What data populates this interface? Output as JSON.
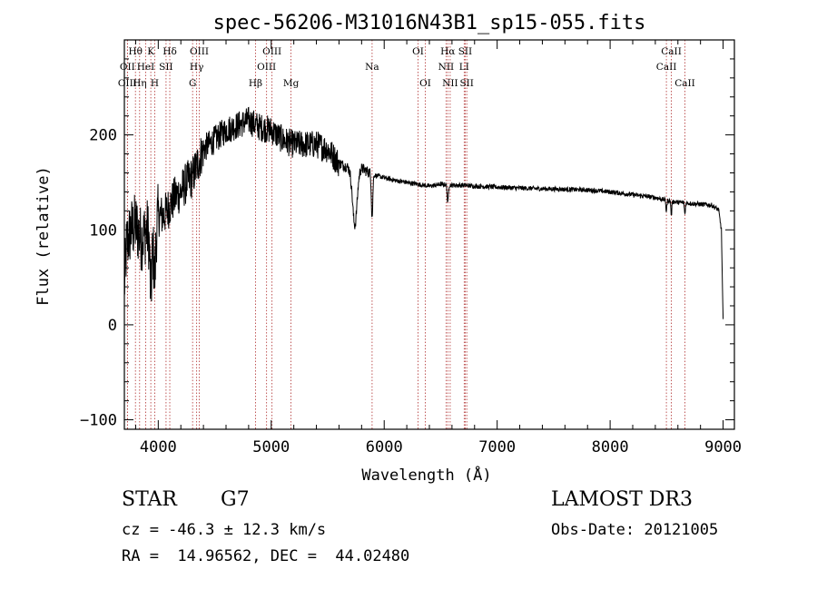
{
  "chart_data": {
    "type": "line",
    "title": "spec-56206-M31016N43B1_sp15-055.fits",
    "xlabel": "Wavelength (Å)",
    "ylabel": "Flux (relative)",
    "xlim": [
      3700,
      9100
    ],
    "ylim": [
      -110,
      300
    ],
    "x_ticks": [
      4000,
      5000,
      6000,
      7000,
      8000,
      9000
    ],
    "y_ticks": [
      -100,
      0,
      100,
      200
    ],
    "grid": false,
    "line_color": "#000000",
    "marker_color": "#b03030",
    "continuum": [
      [
        3700,
        40
      ],
      [
        3720,
        85
      ],
      [
        3760,
        100
      ],
      [
        3800,
        105
      ],
      [
        3850,
        90
      ],
      [
        3900,
        100
      ],
      [
        3950,
        85
      ],
      [
        4000,
        115
      ],
      [
        4050,
        115
      ],
      [
        4100,
        125
      ],
      [
        4150,
        135
      ],
      [
        4200,
        140
      ],
      [
        4250,
        150
      ],
      [
        4300,
        155
      ],
      [
        4350,
        170
      ],
      [
        4400,
        185
      ],
      [
        4500,
        195
      ],
      [
        4600,
        205
      ],
      [
        4700,
        210
      ],
      [
        4800,
        215
      ],
      [
        4900,
        208
      ],
      [
        5000,
        205
      ],
      [
        5100,
        195
      ],
      [
        5200,
        190
      ],
      [
        5300,
        190
      ],
      [
        5400,
        190
      ],
      [
        5500,
        185
      ],
      [
        5600,
        170
      ],
      [
        5700,
        165
      ],
      [
        5800,
        165
      ],
      [
        5900,
        158
      ],
      [
        6000,
        155
      ],
      [
        6100,
        152
      ],
      [
        6200,
        150
      ],
      [
        6300,
        148
      ],
      [
        6400,
        146
      ],
      [
        6500,
        148
      ],
      [
        6600,
        147
      ],
      [
        6700,
        147
      ],
      [
        6800,
        146
      ],
      [
        7000,
        145
      ],
      [
        7200,
        144
      ],
      [
        7500,
        143
      ],
      [
        7800,
        142
      ],
      [
        8000,
        140
      ],
      [
        8200,
        137
      ],
      [
        8400,
        134
      ],
      [
        8500,
        131
      ],
      [
        8600,
        129
      ],
      [
        8700,
        128
      ],
      [
        8800,
        127
      ],
      [
        8900,
        126
      ],
      [
        8960,
        121
      ],
      [
        8985,
        100
      ],
      [
        9000,
        5
      ]
    ],
    "absorption_features": [
      {
        "center": 3934,
        "depth": 55,
        "width": 8
      },
      {
        "center": 3969,
        "depth": 45,
        "width": 8
      },
      {
        "center": 5740,
        "depth": 60,
        "width": 20
      },
      {
        "center": 5893,
        "depth": 45,
        "width": 6
      },
      {
        "center": 6563,
        "depth": 20,
        "width": 5
      },
      {
        "center": 8498,
        "depth": 12,
        "width": 4
      },
      {
        "center": 8542,
        "depth": 15,
        "width": 4
      },
      {
        "center": 8662,
        "depth": 12,
        "width": 4
      }
    ],
    "lines": [
      {
        "label": "Hθ",
        "wave": 3798,
        "row": 0
      },
      {
        "label": "OII",
        "wave": 3727,
        "row": 1
      },
      {
        "label": "OIII",
        "wave": 3727,
        "row": 2
      },
      {
        "label": "K",
        "wave": 3934,
        "row": 0
      },
      {
        "label": "HeI",
        "wave": 3889,
        "row": 1
      },
      {
        "label": "Hη",
        "wave": 3835,
        "row": 2
      },
      {
        "label": "Hδ",
        "wave": 4102,
        "row": 0
      },
      {
        "label": "SII",
        "wave": 4069,
        "row": 1
      },
      {
        "label": "H",
        "wave": 3969,
        "row": 2
      },
      {
        "label": "OIII",
        "wave": 4363,
        "row": 0
      },
      {
        "label": "Hγ",
        "wave": 4340,
        "row": 1
      },
      {
        "label": "G",
        "wave": 4304,
        "row": 2
      },
      {
        "label": "OIII",
        "wave": 5007,
        "row": 0
      },
      {
        "label": "OIII",
        "wave": 4959,
        "row": 1
      },
      {
        "label": "Hβ",
        "wave": 4861,
        "row": 2
      },
      {
        "label": "Mg",
        "wave": 5175,
        "row": 2
      },
      {
        "label": "Na",
        "wave": 5893,
        "row": 1
      },
      {
        "label": "OI",
        "wave": 6300,
        "row": 0
      },
      {
        "label": "OI",
        "wave": 6364,
        "row": 2
      },
      {
        "label": "Hα",
        "wave": 6563,
        "row": 0
      },
      {
        "label": "NII",
        "wave": 6548,
        "row": 1
      },
      {
        "label": "NII",
        "wave": 6584,
        "row": 2
      },
      {
        "label": "SII",
        "wave": 6717,
        "row": 0
      },
      {
        "label": "LI",
        "wave": 6708,
        "row": 1
      },
      {
        "label": "SII",
        "wave": 6731,
        "row": 2
      },
      {
        "label": "CaII",
        "wave": 8542,
        "row": 0
      },
      {
        "label": "CaII",
        "wave": 8498,
        "row": 1
      },
      {
        "label": "CaII",
        "wave": 8662,
        "row": 2
      }
    ]
  },
  "info": {
    "object_class": "STAR",
    "subclass": "G7",
    "survey": "LAMOST DR3",
    "redshift": "cz = -46.3 ± 12.3 km/s",
    "obs_date": "Obs-Date: 20121005",
    "coords": "RA =  14.96562, DEC =  44.02480"
  }
}
